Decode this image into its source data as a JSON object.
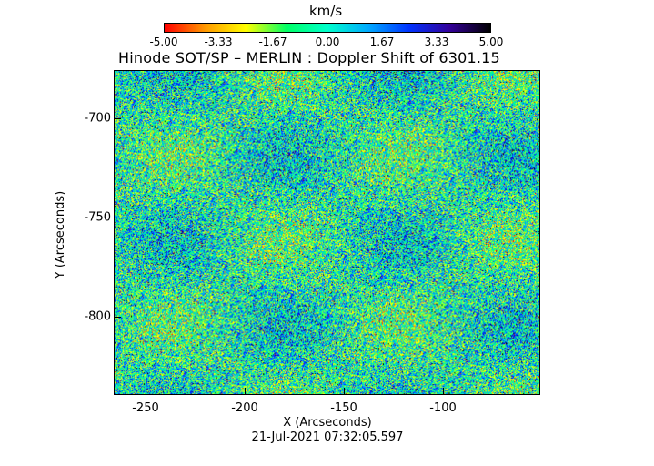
{
  "colorbar": {
    "units": "km/s",
    "ticks": [
      "-5.00",
      "-3.33",
      "-1.67",
      "0.00",
      "1.67",
      "3.33",
      "5.00"
    ],
    "colors": [
      "#ff0000",
      "#ff9900",
      "#ffff00",
      "#00ff66",
      "#00ffcc",
      "#00aaff",
      "#0033ff",
      "#330099",
      "#000000"
    ]
  },
  "plot": {
    "title": "Hinode SOT/SP – MERLIN : Doppler Shift of 6301.15",
    "xlabel": "X (Arcseconds)",
    "ylabel": "Y (Arcseconds)",
    "x_ticks": [
      "-250",
      "-200",
      "-150",
      "-100"
    ],
    "y_ticks": [
      "-700",
      "-750",
      "-800"
    ],
    "timestamp": "21-Jul-2021 07:32:05.597"
  }
}
